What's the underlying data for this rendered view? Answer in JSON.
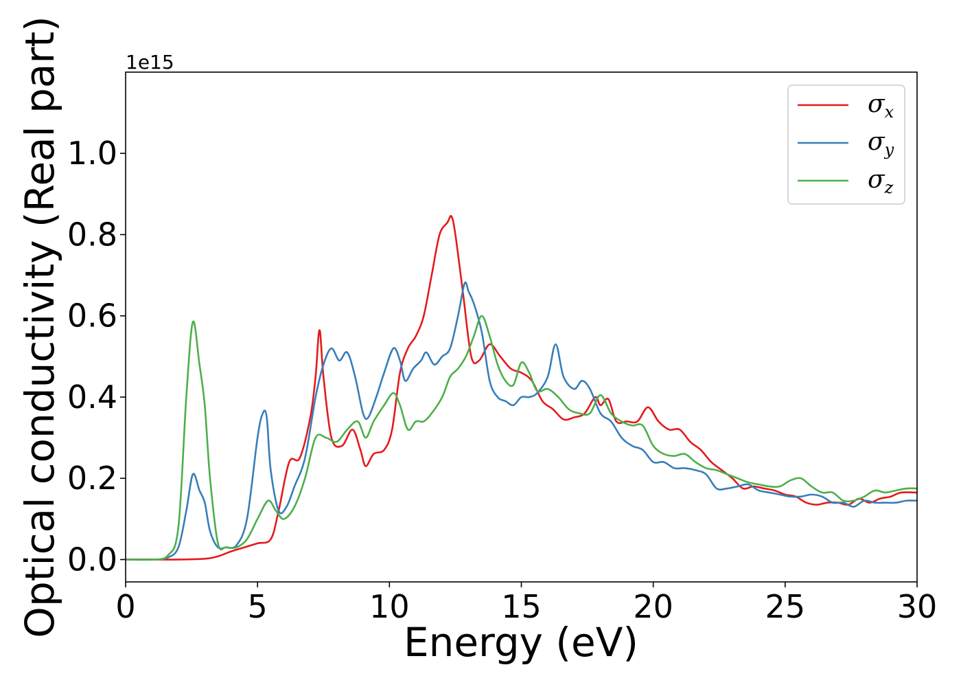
{
  "chart_data": {
    "type": "line",
    "xlabel": "Energy (eV)",
    "ylabel": "Optical conductivity (Real part)",
    "y_offset_text": "1e15",
    "xlim": [
      0,
      30
    ],
    "ylim": [
      -0.055,
      1.2
    ],
    "xticks": [
      0,
      5,
      10,
      15,
      20,
      25,
      30
    ],
    "xtick_labels": [
      "0",
      "5",
      "10",
      "15",
      "20",
      "25",
      "30"
    ],
    "yticks": [
      0.0,
      0.2,
      0.4,
      0.6,
      0.8,
      1.0
    ],
    "ytick_labels": [
      "0.0",
      "0.2",
      "0.4",
      "0.6",
      "0.8",
      "1.0"
    ],
    "grid": false,
    "legend_placement": "top-right",
    "series": [
      {
        "name": "σx",
        "legend_symbol": "σ",
        "legend_sub": "x",
        "color": "#e41a1c",
        "x": [
          0,
          1,
          2,
          3,
          3.5,
          4,
          4.5,
          5,
          5.5,
          5.8,
          6.2,
          6.6,
          7.0,
          7.2,
          7.35,
          7.5,
          7.8,
          8.2,
          8.6,
          8.9,
          9.1,
          9.4,
          9.8,
          10.1,
          10.4,
          10.7,
          11.0,
          11.3,
          11.6,
          11.9,
          12.2,
          12.35,
          12.5,
          12.8,
          13.1,
          13.4,
          13.8,
          14.2,
          14.6,
          15.0,
          15.4,
          15.8,
          16.2,
          16.6,
          17.0,
          17.4,
          17.8,
          18.0,
          18.3,
          18.6,
          19.0,
          19.4,
          19.8,
          20.2,
          20.6,
          21.0,
          21.4,
          21.8,
          22.2,
          22.6,
          23.0,
          23.4,
          23.8,
          24.2,
          24.6,
          25.0,
          25.4,
          25.8,
          26.2,
          26.6,
          27.0,
          27.4,
          27.8,
          28.2,
          28.6,
          29.0,
          29.4,
          30.0
        ],
        "y": [
          0.0,
          0.0,
          0.0,
          0.002,
          0.008,
          0.02,
          0.03,
          0.04,
          0.05,
          0.12,
          0.24,
          0.25,
          0.35,
          0.45,
          0.565,
          0.45,
          0.3,
          0.28,
          0.32,
          0.27,
          0.23,
          0.26,
          0.27,
          0.32,
          0.46,
          0.52,
          0.55,
          0.6,
          0.7,
          0.8,
          0.83,
          0.845,
          0.8,
          0.65,
          0.5,
          0.49,
          0.53,
          0.5,
          0.47,
          0.46,
          0.44,
          0.39,
          0.37,
          0.345,
          0.35,
          0.36,
          0.4,
          0.38,
          0.395,
          0.34,
          0.34,
          0.34,
          0.375,
          0.34,
          0.32,
          0.32,
          0.29,
          0.27,
          0.24,
          0.22,
          0.2,
          0.175,
          0.18,
          0.175,
          0.17,
          0.16,
          0.155,
          0.14,
          0.135,
          0.14,
          0.14,
          0.135,
          0.15,
          0.14,
          0.15,
          0.155,
          0.165,
          0.165
        ]
      },
      {
        "name": "σy",
        "legend_symbol": "σ",
        "legend_sub": "y",
        "color": "#377eb8",
        "x": [
          0,
          1,
          1.6,
          2.0,
          2.3,
          2.55,
          2.8,
          3.0,
          3.2,
          3.5,
          3.8,
          4.2,
          4.6,
          5.0,
          5.2,
          5.35,
          5.5,
          5.8,
          6.1,
          6.4,
          6.8,
          7.2,
          7.5,
          7.8,
          8.1,
          8.4,
          8.7,
          9.0,
          9.2,
          9.5,
          9.8,
          10.15,
          10.4,
          10.6,
          10.9,
          11.2,
          11.4,
          11.7,
          12.0,
          12.3,
          12.6,
          12.85,
          13.0,
          13.2,
          13.5,
          13.8,
          14.1,
          14.4,
          14.7,
          15.0,
          15.3,
          15.6,
          16.0,
          16.3,
          16.6,
          17.0,
          17.3,
          17.6,
          18.0,
          18.4,
          18.8,
          19.2,
          19.6,
          20.0,
          20.4,
          20.8,
          21.2,
          21.6,
          22.0,
          22.4,
          22.8,
          23.2,
          23.6,
          24.0,
          24.4,
          24.8,
          25.2,
          25.6,
          26.0,
          26.4,
          26.8,
          27.2,
          27.6,
          28.0,
          28.4,
          28.8,
          29.2,
          29.6,
          30.0
        ],
        "y": [
          0.0,
          0.0,
          0.005,
          0.03,
          0.12,
          0.21,
          0.17,
          0.14,
          0.07,
          0.03,
          0.03,
          0.035,
          0.1,
          0.3,
          0.36,
          0.35,
          0.22,
          0.12,
          0.13,
          0.18,
          0.25,
          0.4,
          0.48,
          0.52,
          0.49,
          0.51,
          0.45,
          0.36,
          0.35,
          0.4,
          0.46,
          0.52,
          0.49,
          0.44,
          0.47,
          0.49,
          0.51,
          0.48,
          0.5,
          0.52,
          0.6,
          0.68,
          0.66,
          0.63,
          0.56,
          0.44,
          0.4,
          0.39,
          0.38,
          0.4,
          0.4,
          0.41,
          0.45,
          0.53,
          0.45,
          0.42,
          0.44,
          0.42,
          0.36,
          0.34,
          0.3,
          0.28,
          0.27,
          0.24,
          0.24,
          0.225,
          0.225,
          0.22,
          0.21,
          0.175,
          0.175,
          0.18,
          0.185,
          0.17,
          0.165,
          0.16,
          0.155,
          0.155,
          0.16,
          0.155,
          0.14,
          0.14,
          0.13,
          0.145,
          0.14,
          0.14,
          0.14,
          0.145,
          0.145
        ]
      },
      {
        "name": "σz",
        "legend_symbol": "σ",
        "legend_sub": "z",
        "color": "#4daf4a",
        "x": [
          0,
          1,
          1.6,
          2.0,
          2.3,
          2.55,
          2.8,
          3.0,
          3.2,
          3.5,
          3.8,
          4.2,
          4.6,
          5.0,
          5.4,
          5.7,
          6.0,
          6.4,
          6.8,
          7.2,
          7.6,
          8.0,
          8.4,
          8.8,
          9.1,
          9.4,
          9.8,
          10.15,
          10.4,
          10.7,
          11.0,
          11.3,
          11.6,
          12.0,
          12.3,
          12.6,
          12.9,
          13.2,
          13.5,
          13.8,
          14.1,
          14.4,
          14.7,
          15.0,
          15.3,
          15.6,
          16.0,
          16.4,
          16.8,
          17.2,
          17.6,
          18.0,
          18.4,
          18.8,
          19.2,
          19.6,
          20.0,
          20.4,
          20.8,
          21.2,
          21.6,
          22.0,
          22.4,
          22.8,
          23.2,
          23.6,
          24.0,
          24.4,
          24.8,
          25.2,
          25.6,
          26.0,
          26.4,
          26.8,
          27.2,
          27.6,
          28.0,
          28.4,
          28.8,
          29.2,
          29.6,
          30.0
        ],
        "y": [
          0.0,
          0.0,
          0.01,
          0.08,
          0.4,
          0.585,
          0.48,
          0.38,
          0.2,
          0.04,
          0.03,
          0.03,
          0.05,
          0.1,
          0.145,
          0.12,
          0.1,
          0.13,
          0.2,
          0.3,
          0.3,
          0.29,
          0.32,
          0.34,
          0.3,
          0.34,
          0.38,
          0.41,
          0.38,
          0.32,
          0.34,
          0.34,
          0.36,
          0.4,
          0.45,
          0.47,
          0.5,
          0.55,
          0.6,
          0.55,
          0.48,
          0.44,
          0.43,
          0.485,
          0.46,
          0.415,
          0.42,
          0.4,
          0.37,
          0.36,
          0.36,
          0.405,
          0.36,
          0.34,
          0.33,
          0.33,
          0.28,
          0.26,
          0.255,
          0.26,
          0.24,
          0.225,
          0.22,
          0.21,
          0.2,
          0.19,
          0.185,
          0.18,
          0.18,
          0.195,
          0.2,
          0.18,
          0.165,
          0.165,
          0.145,
          0.145,
          0.155,
          0.17,
          0.165,
          0.17,
          0.175,
          0.175
        ]
      }
    ]
  }
}
